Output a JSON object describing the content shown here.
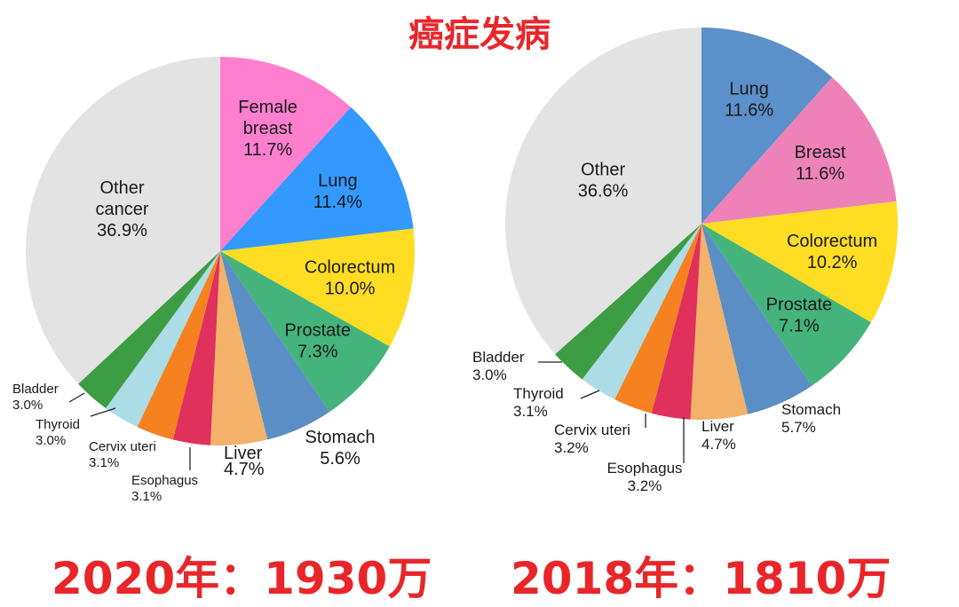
{
  "title": "癌症发病",
  "subtitles": {
    "left": "2020年：1930万",
    "right": "2018年：1810万"
  },
  "chart_data": [
    {
      "type": "pie",
      "subtitle": "2020年：1930万",
      "slices": [
        {
          "name": "Female breast",
          "label_lines": [
            "Female",
            "breast",
            "11.7%"
          ],
          "value": 11.7,
          "color": "#ff7fcf"
        },
        {
          "name": "Lung",
          "label_lines": [
            "Lung",
            "11.4%"
          ],
          "value": 11.4,
          "color": "#3399ff"
        },
        {
          "name": "Colorectum",
          "label_lines": [
            "Colorectum",
            "10.0%"
          ],
          "value": 10.0,
          "color": "#ffdd22"
        },
        {
          "name": "Prostate",
          "label_lines": [
            "Prostate",
            "7.3%"
          ],
          "value": 7.3,
          "color": "#44b37c"
        },
        {
          "name": "Stomach",
          "label_lines": [
            "Stomach",
            "5.6%"
          ],
          "value": 5.6,
          "color": "#5b8ec4"
        },
        {
          "name": "Liver",
          "label_lines": [
            "Liver",
            "4.7%"
          ],
          "value": 4.7,
          "color": "#f3b16a"
        },
        {
          "name": "Esophagus",
          "label_lines": [
            "Esophagus",
            "3.1%"
          ],
          "value": 3.1,
          "color": "#e0305c"
        },
        {
          "name": "Cervix uteri",
          "label_lines": [
            "Cervix uteri",
            "3.1%"
          ],
          "value": 3.1,
          "color": "#f58120"
        },
        {
          "name": "Thyroid",
          "label_lines": [
            "Thyroid",
            "3.0%"
          ],
          "value": 3.0,
          "color": "#acdde6"
        },
        {
          "name": "Bladder",
          "label_lines": [
            "Bladder",
            "3.0%"
          ],
          "value": 3.0,
          "color": "#3d9d44"
        },
        {
          "name": "Other cancer",
          "label_lines": [
            "Other",
            "cancer",
            "36.9%"
          ],
          "value": 36.9,
          "color": "#e3e3e3"
        }
      ]
    },
    {
      "type": "pie",
      "subtitle": "2018年：1810万",
      "slices": [
        {
          "name": "Lung",
          "label_lines": [
            "Lung",
            "11.6%"
          ],
          "value": 11.6,
          "color": "#5b90ca"
        },
        {
          "name": "Breast",
          "label_lines": [
            "Breast",
            "11.6%"
          ],
          "value": 11.6,
          "color": "#ee82b8"
        },
        {
          "name": "Colorectum",
          "label_lines": [
            "Colorectum",
            "10.2%"
          ],
          "value": 10.2,
          "color": "#ffdd22"
        },
        {
          "name": "Prostate",
          "label_lines": [
            "Prostate",
            "7.1%"
          ],
          "value": 7.1,
          "color": "#44b37c"
        },
        {
          "name": "Stomach",
          "label_lines": [
            "Stomach",
            "5.7%"
          ],
          "value": 5.7,
          "color": "#5b8ec4"
        },
        {
          "name": "Liver",
          "label_lines": [
            "Liver",
            "4.7%"
          ],
          "value": 4.7,
          "color": "#f3b16a"
        },
        {
          "name": "Esophagus",
          "label_lines": [
            "Esophagus",
            "3.2%"
          ],
          "value": 3.2,
          "color": "#e0305c"
        },
        {
          "name": "Cervix uteri",
          "label_lines": [
            "Cervix uteri",
            "3.2%"
          ],
          "value": 3.2,
          "color": "#f58120"
        },
        {
          "name": "Thyroid",
          "label_lines": [
            "Thyroid",
            "3.1%"
          ],
          "value": 3.1,
          "color": "#acdde6"
        },
        {
          "name": "Bladder",
          "label_lines": [
            "Bladder",
            "3.0%"
          ],
          "value": 3.0,
          "color": "#3d9d44"
        },
        {
          "name": "Other",
          "label_lines": [
            "Other",
            "36.6%"
          ],
          "value": 36.6,
          "color": "#e3e3e3"
        }
      ]
    }
  ]
}
